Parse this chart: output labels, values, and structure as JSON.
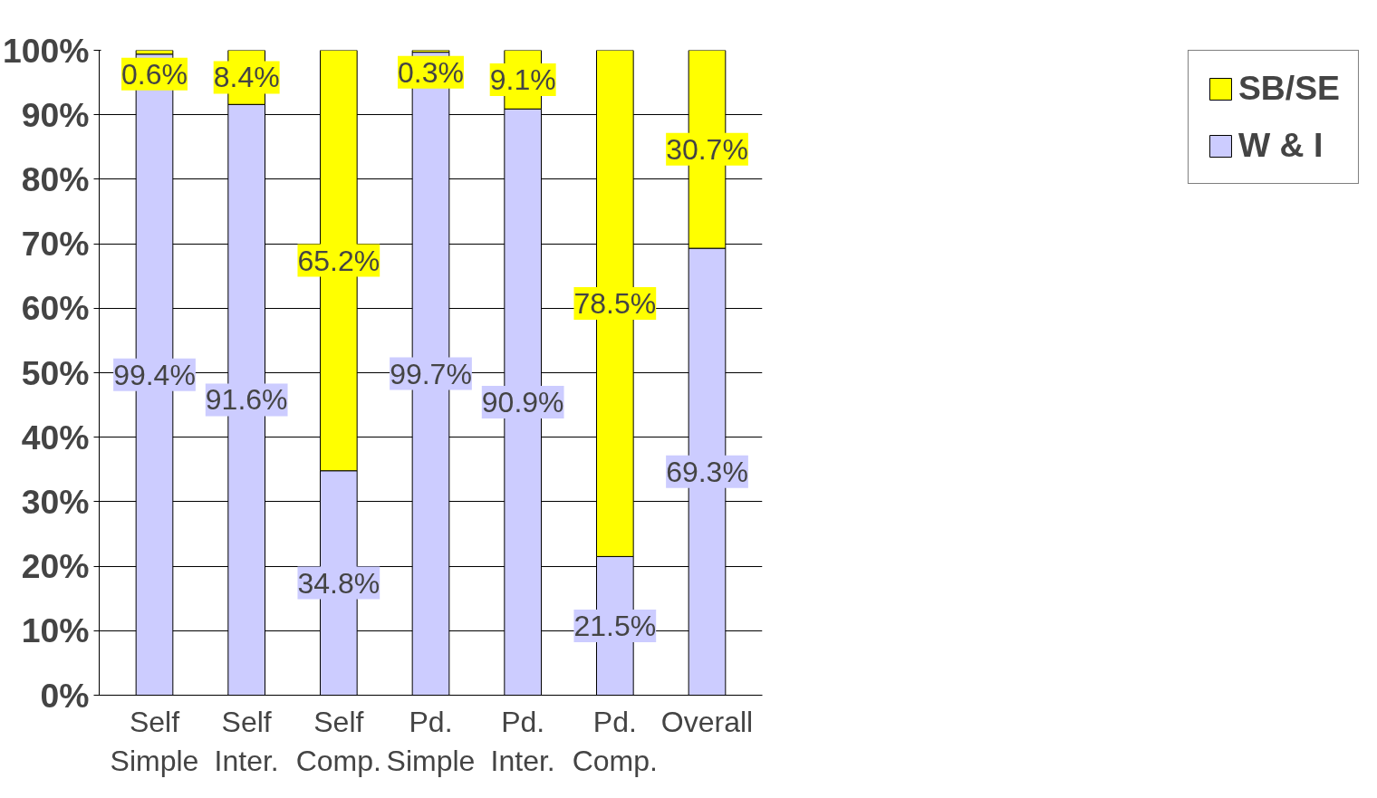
{
  "chart_data": {
    "type": "bar",
    "stacked": true,
    "categories": [
      "Self\nSimple",
      "Self\nInter.",
      "Self\nComp.",
      "Pd.\nSimple",
      "Pd.\nInter.",
      "Pd.\nComp.",
      "Overall"
    ],
    "series": [
      {
        "name": "W & I",
        "color": "#ccccff",
        "values": [
          99.4,
          91.6,
          34.8,
          99.7,
          90.9,
          21.5,
          69.3
        ],
        "value_labels": [
          "99.4%",
          "91.6%",
          "34.8%",
          "99.7%",
          "90.9%",
          "21.5%",
          "69.3%"
        ]
      },
      {
        "name": "SB/SE",
        "color": "#ffff00",
        "values": [
          0.6,
          8.4,
          65.2,
          0.3,
          9.1,
          78.5,
          30.7
        ],
        "value_labels": [
          "0.6%",
          "8.4%",
          "65.2%",
          "0.3%",
          "9.1%",
          "78.5%",
          "30.7%"
        ]
      }
    ],
    "ylim": [
      0,
      100
    ],
    "yticks": [
      {
        "value": 0,
        "label": "0%"
      },
      {
        "value": 10,
        "label": "10%"
      },
      {
        "value": 20,
        "label": "20%"
      },
      {
        "value": 30,
        "label": "30%"
      },
      {
        "value": 40,
        "label": "40%"
      },
      {
        "value": 50,
        "label": "50%"
      },
      {
        "value": 60,
        "label": "60%"
      },
      {
        "value": 70,
        "label": "70%"
      },
      {
        "value": 80,
        "label": "80%"
      },
      {
        "value": 90,
        "label": "90%"
      },
      {
        "value": 100,
        "label": "100%"
      }
    ],
    "grid": "y",
    "legend": "right"
  }
}
